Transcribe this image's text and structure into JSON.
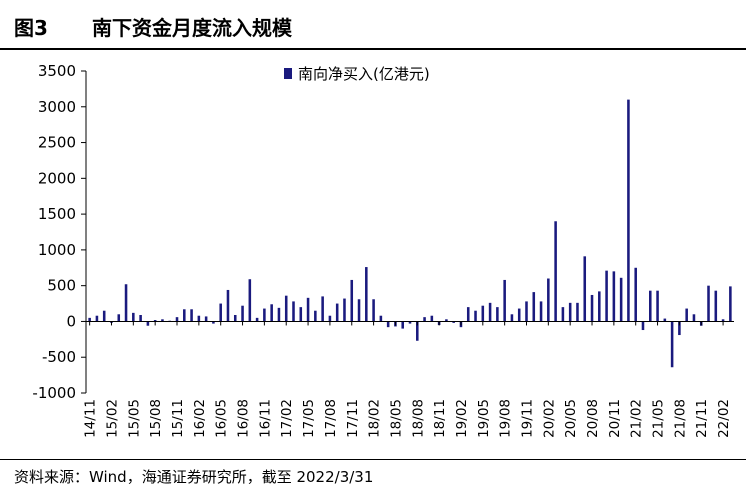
{
  "figure": {
    "number": "图3",
    "title": "南下资金月度流入规模",
    "source": "资料来源：Wind，海通证券研究所，截至 2022/3/31"
  },
  "colors": {
    "bar": "#1a1a7e",
    "axis": "#000000"
  },
  "chart_data": {
    "type": "bar",
    "title": "",
    "xlabel": "",
    "ylabel": "",
    "ylim": [
      -1000,
      3500
    ],
    "yticks": [
      -1000,
      -500,
      0,
      500,
      1000,
      1500,
      2000,
      2500,
      3000,
      3500
    ],
    "grid": false,
    "legend": "top-center",
    "xtick_labels": [
      "14/11",
      "15/02",
      "15/05",
      "15/08",
      "15/11",
      "16/02",
      "16/05",
      "16/08",
      "16/11",
      "17/02",
      "17/05",
      "17/08",
      "17/11",
      "18/02",
      "18/05",
      "18/08",
      "18/11",
      "19/02",
      "19/05",
      "19/08",
      "19/11",
      "20/02",
      "20/05",
      "20/08",
      "20/11",
      "21/02",
      "21/05",
      "21/08",
      "21/11",
      "22/02"
    ],
    "categories": [
      "14/11",
      "14/12",
      "15/01",
      "15/02",
      "15/03",
      "15/04",
      "15/05",
      "15/06",
      "15/07",
      "15/08",
      "15/09",
      "15/10",
      "15/11",
      "15/12",
      "16/01",
      "16/02",
      "16/03",
      "16/04",
      "16/05",
      "16/06",
      "16/07",
      "16/08",
      "16/09",
      "16/10",
      "16/11",
      "16/12",
      "17/01",
      "17/02",
      "17/03",
      "17/04",
      "17/05",
      "17/06",
      "17/07",
      "17/08",
      "17/09",
      "17/10",
      "17/11",
      "17/12",
      "18/01",
      "18/02",
      "18/03",
      "18/04",
      "18/05",
      "18/06",
      "18/07",
      "18/08",
      "18/09",
      "18/10",
      "18/11",
      "18/12",
      "19/01",
      "19/02",
      "19/03",
      "19/04",
      "19/05",
      "19/06",
      "19/07",
      "19/08",
      "19/09",
      "19/10",
      "19/11",
      "19/12",
      "20/01",
      "20/02",
      "20/03",
      "20/04",
      "20/05",
      "20/06",
      "20/07",
      "20/08",
      "20/09",
      "20/10",
      "20/11",
      "20/12",
      "21/01",
      "21/02",
      "21/03",
      "21/04",
      "21/05",
      "21/06",
      "21/07",
      "21/08",
      "21/09",
      "21/10",
      "21/11",
      "21/12",
      "22/01",
      "22/02",
      "22/03"
    ],
    "series": [
      {
        "name": "南向净买入(亿港元)",
        "values": [
          50,
          80,
          150,
          -20,
          100,
          520,
          120,
          90,
          -60,
          20,
          30,
          10,
          60,
          170,
          170,
          80,
          70,
          -30,
          250,
          440,
          90,
          220,
          590,
          50,
          180,
          240,
          190,
          360,
          280,
          200,
          330,
          150,
          350,
          80,
          250,
          320,
          580,
          310,
          760,
          310,
          80,
          -80,
          -70,
          -100,
          -30,
          -270,
          60,
          80,
          -50,
          30,
          -20,
          -80,
          200,
          150,
          220,
          260,
          200,
          580,
          100,
          180,
          280,
          410,
          280,
          600,
          1400,
          200,
          260,
          260,
          910,
          370,
          420,
          710,
          700,
          610,
          3100,
          750,
          -120,
          430,
          430,
          40,
          -640,
          -190,
          180,
          100,
          -60,
          500,
          430,
          30,
          490
        ]
      }
    ]
  }
}
